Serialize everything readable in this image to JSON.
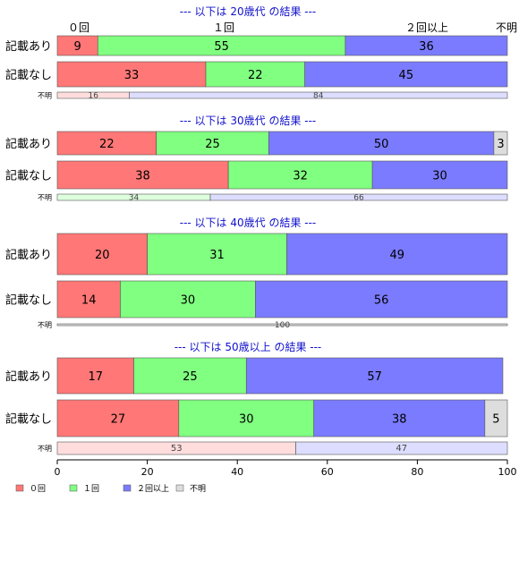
{
  "chart_data": {
    "type": "bar",
    "orientation": "horizontal",
    "stacked": "percent",
    "xlim": [
      0,
      100
    ],
    "x_ticks": [
      0,
      20,
      40,
      60,
      80,
      100
    ],
    "grid": false,
    "legend_position": "bottom-left",
    "top_labels": [
      "０回",
      "１回",
      "２回以上",
      "不明"
    ],
    "legend": [
      {
        "name": "０回",
        "color": "#ff7777"
      },
      {
        "name": "１回",
        "color": "#80ff80"
      },
      {
        "name": "２回以上",
        "color": "#7b7bff"
      },
      {
        "name": "不明",
        "color": "#dddddd"
      }
    ],
    "unknown_colors": {
      "a": "#ffdddd",
      "b": "#ddddff"
    },
    "groups": [
      {
        "title": "--- 以下は 20歳代 の結果 ---",
        "rows": [
          {
            "label": "記載あり",
            "values": [
              9,
              55,
              36,
              0
            ]
          },
          {
            "label": "記載なし",
            "values": [
              33,
              22,
              45,
              0
            ]
          }
        ],
        "unknown": {
          "label": "不明",
          "values": [
            16,
            84
          ]
        }
      },
      {
        "title": "--- 以下は 30歳代 の結果 ---",
        "rows": [
          {
            "label": "記載あり",
            "values": [
              22,
              25,
              50,
              3
            ]
          },
          {
            "label": "記載なし",
            "values": [
              38,
              32,
              30,
              0
            ]
          }
        ],
        "unknown": {
          "label": "不明",
          "values": [
            34,
            66
          ],
          "colors": [
            "#ddffdd",
            "#ddddff"
          ]
        }
      },
      {
        "title": "--- 以下は 40歳代 の結果 ---",
        "rows": [
          {
            "label": "記載あり",
            "values": [
              20,
              31,
              49,
              0
            ]
          },
          {
            "label": "記載なし",
            "values": [
              14,
              30,
              56,
              0
            ]
          }
        ],
        "unknown": {
          "label": "不明",
          "values": [
            100
          ],
          "colors": [
            "#dddddd"
          ]
        }
      },
      {
        "title": "--- 以下は 50歳以上 の結果 ---",
        "rows": [
          {
            "label": "記載あり",
            "values": [
              17,
              25,
              57,
              0
            ]
          },
          {
            "label": "記載なし",
            "values": [
              27,
              30,
              38,
              5
            ]
          }
        ],
        "unknown": {
          "label": "不明",
          "values": [
            53,
            47
          ]
        }
      }
    ]
  }
}
